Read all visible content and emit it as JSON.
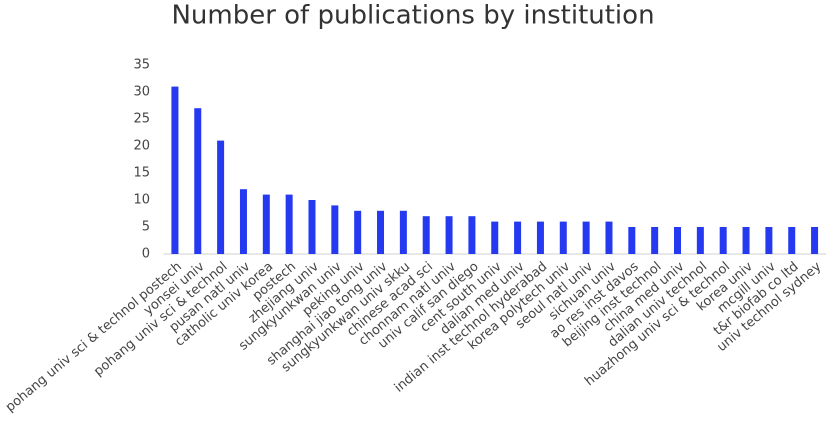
{
  "chart_data": {
    "type": "bar",
    "title": "Number of publications by institution",
    "categories": [
      "pohang univ sci & technol postech",
      "yonsei univ",
      "pohang univ sci & technol",
      "pusan natl univ",
      "catholic univ korea",
      "postech",
      "zhejiang univ",
      "sungkyunkwan univ",
      "peking univ",
      "shanghai jiao tong univ",
      "sungkyunkwan univ skku",
      "chinese acad sci",
      "chonnam natl univ",
      "univ calif san diego",
      "cent south univ",
      "dalian med univ",
      "indian inst technol hyderabad",
      "korea polytech univ",
      "seoul natl univ",
      "sichuan univ",
      "ao res inst davos",
      "beijing inst technol",
      "china med univ",
      "dalian univ technol",
      "huazhong univ sci & technol",
      "korea univ",
      "mcgill univ",
      "t&r biofab co ltd",
      "univ technol sydney"
    ],
    "values": [
      31,
      27,
      21,
      12,
      11,
      11,
      10,
      9,
      8,
      8,
      8,
      7,
      7,
      7,
      6,
      6,
      6,
      6,
      6,
      6,
      5,
      5,
      5,
      5,
      5,
      5,
      5,
      5,
      5
    ],
    "color": "#2539f0",
    "ylim": [
      0,
      35
    ],
    "yticks": [
      0,
      5,
      10,
      15,
      20,
      25,
      30,
      35
    ],
    "grid": false
  }
}
